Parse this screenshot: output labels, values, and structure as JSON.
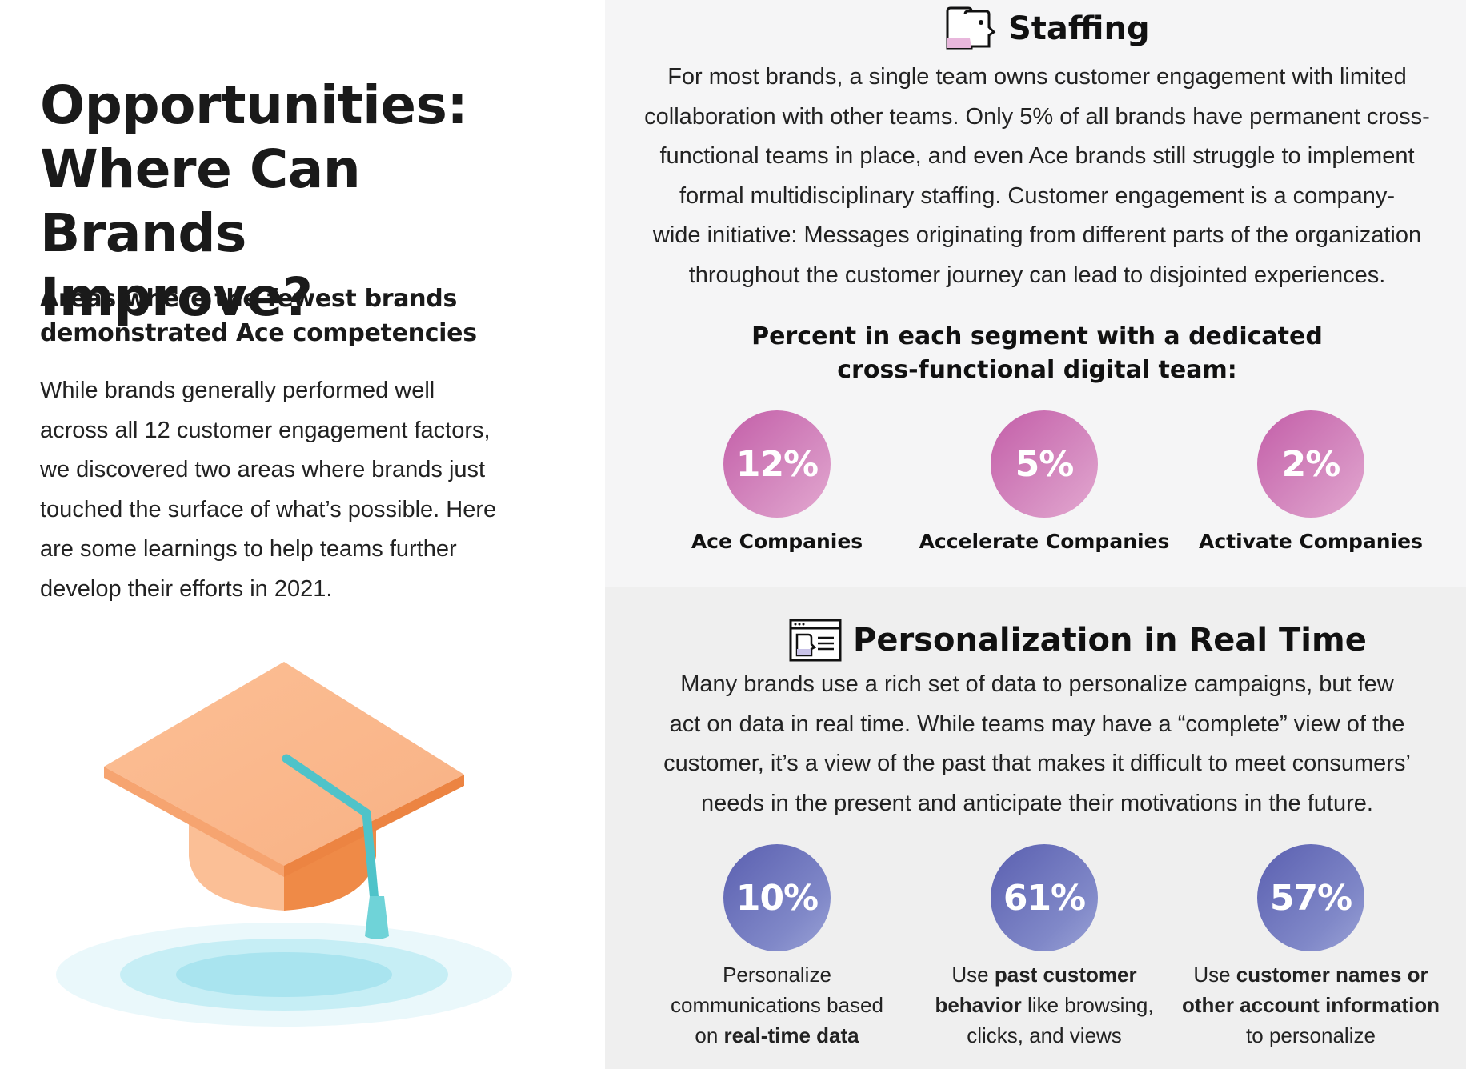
{
  "left": {
    "title_lines": [
      "Opportunities:",
      "Where Can",
      "Brands Improve?"
    ],
    "subtitle_lines": [
      "Areas where the fewest brands",
      "demonstrated Ace competencies"
    ],
    "body_lines": [
      "While brands generally performed well",
      "across all 12 customer engagement factors,",
      "we discovered two areas where brands just",
      "touched the surface of what’s possible. Here",
      "are some learnings to help teams further",
      "develop their efforts in 2021."
    ]
  },
  "staffing": {
    "icon": "staffing-people-icon",
    "title": "Staffing",
    "paragraph_lines": [
      "For most brands, a single team owns customer engagement with limited",
      "collaboration with other teams. Only 5% of all brands have permanent cross-",
      "functional teams in place, and even Ace brands still struggle to implement",
      "formal multidisciplinary staffing. Customer engagement is a company-",
      "wide initiative: Messages originating from different parts of the organization",
      "throughout the customer journey can lead to disjointed experiences."
    ],
    "chart_title_lines": [
      "Percent in each segment with a dedicated",
      "cross-functional digital team:"
    ],
    "stats": [
      {
        "value": "12%",
        "label": "Ace Companies"
      },
      {
        "value": "5%",
        "label": "Accelerate Companies"
      },
      {
        "value": "2%",
        "label": "Activate Companies"
      }
    ],
    "color": "#c86aae"
  },
  "personalization": {
    "icon": "browser-window-icon",
    "title": "Personalization in Real Time",
    "paragraph_lines": [
      "Many brands use a rich set of data to personalize campaigns, but few",
      "act on data in real time. While teams may have a “complete” view of the",
      "customer, it’s a view of the past that makes it difficult to meet consumers’",
      "needs in the present and anticipate their motivations in the future."
    ],
    "stats": [
      {
        "value": "10%",
        "desc": {
          "l1": "Personalize",
          "l2": "communications based",
          "l3_pre": "on ",
          "l3_bold": "real-time data"
        }
      },
      {
        "value": "61%",
        "desc": {
          "l1_pre": "Use ",
          "l1_bold": "past customer",
          "l2_bold": "behavior",
          "l2_post": " like browsing,",
          "l3": "clicks, and views"
        }
      },
      {
        "value": "57%",
        "desc": {
          "l1_pre": "Use ",
          "l1_bold": "customer names or",
          "l2_bold": "other account information",
          "l3": "to personalize"
        }
      }
    ],
    "color": "#6a70b8"
  },
  "illustration": {
    "icon": "graduation-cap-icon"
  }
}
